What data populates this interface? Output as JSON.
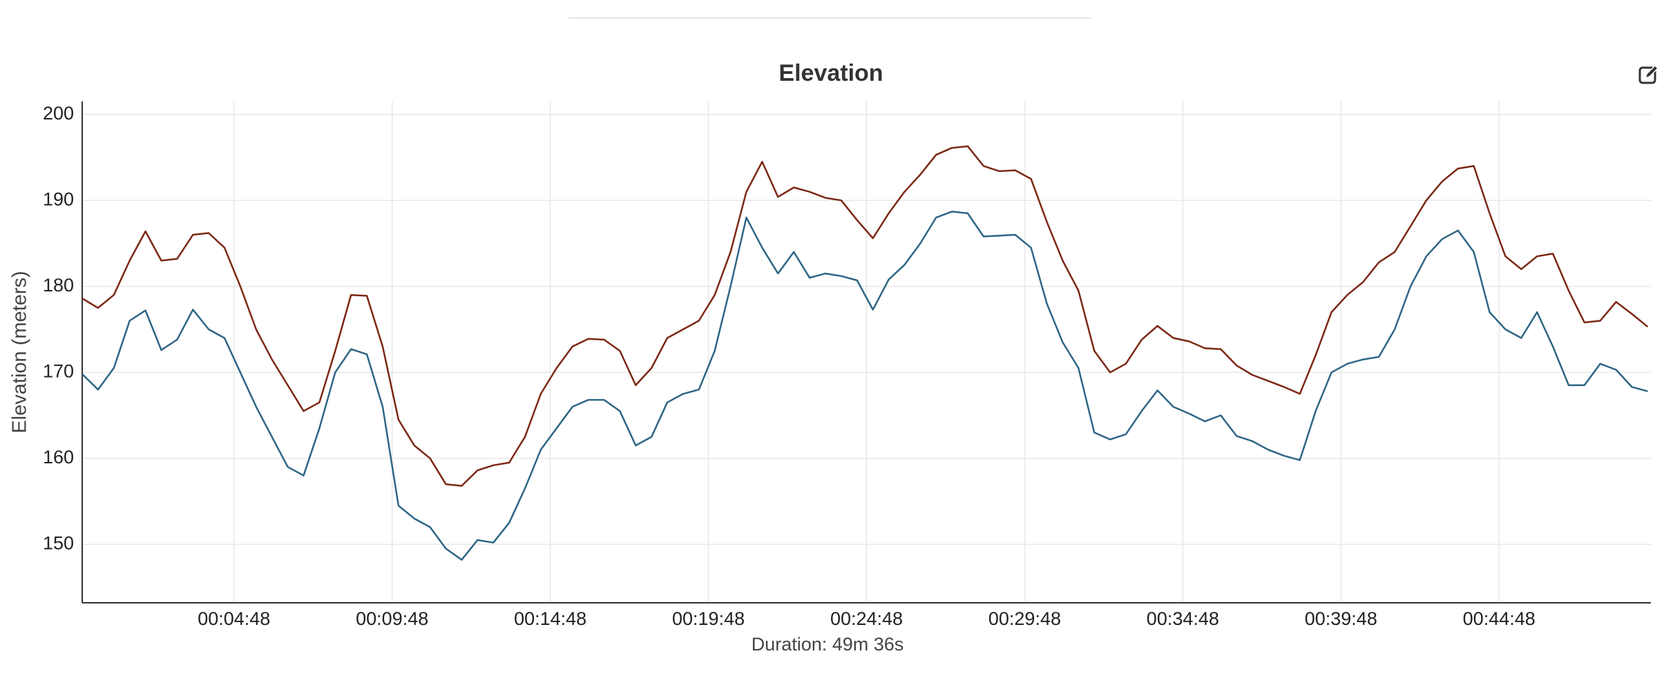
{
  "chart_data": {
    "type": "line",
    "title": "Elevation",
    "x_label": "Duration: 49m 36s",
    "y_label": "Elevation (meters)",
    "x": [
      0,
      30,
      60,
      90,
      120,
      150,
      180,
      210,
      240,
      270,
      300,
      330,
      360,
      390,
      420,
      450,
      480,
      510,
      540,
      570,
      600,
      630,
      660,
      690,
      720,
      750,
      780,
      810,
      840,
      870,
      900,
      930,
      960,
      990,
      1020,
      1050,
      1080,
      1110,
      1140,
      1170,
      1200,
      1230,
      1260,
      1290,
      1320,
      1350,
      1380,
      1410,
      1440,
      1470,
      1500,
      1530,
      1560,
      1590,
      1620,
      1650,
      1680,
      1710,
      1740,
      1770,
      1800,
      1830,
      1860,
      1890,
      1920,
      1950,
      1980,
      2010,
      2040,
      2070,
      2100,
      2130,
      2160,
      2190,
      2220,
      2250,
      2280,
      2310,
      2340,
      2370,
      2400,
      2430,
      2460,
      2490,
      2520,
      2550,
      2580,
      2610,
      2640,
      2670,
      2700,
      2730,
      2760,
      2790,
      2820,
      2850,
      2880,
      2910,
      2940,
      2970
    ],
    "xlim": [
      0,
      2976
    ],
    "xticks": [
      {
        "value": 288,
        "label": "00:04:48"
      },
      {
        "value": 588,
        "label": "00:09:48"
      },
      {
        "value": 888,
        "label": "00:14:48"
      },
      {
        "value": 1188,
        "label": "00:19:48"
      },
      {
        "value": 1488,
        "label": "00:24:48"
      },
      {
        "value": 1788,
        "label": "00:29:48"
      },
      {
        "value": 2088,
        "label": "00:34:48"
      },
      {
        "value": 2388,
        "label": "00:39:48"
      },
      {
        "value": 2688,
        "label": "00:44:48"
      }
    ],
    "ylim": [
      143.2,
      201.5
    ],
    "yticks": [
      150,
      160,
      170,
      180,
      190,
      200
    ],
    "grid": true,
    "series": [
      {
        "color": "#7b2713",
        "values": [
          178.6,
          177.5,
          179,
          183,
          186.4,
          183,
          183.2,
          186,
          186.2,
          184.5,
          180,
          175,
          171.5,
          168.5,
          165.5,
          166.5,
          172.5,
          179,
          178.9,
          173,
          164.5,
          161.5,
          160,
          157,
          156.8,
          158.6,
          159.2,
          159.5,
          162.5,
          167.5,
          170.5,
          173,
          173.9,
          173.8,
          172.5,
          168.5,
          170.5,
          174,
          175,
          176,
          179,
          184,
          191,
          194.5,
          190.4,
          191.5,
          191,
          190.3,
          190,
          187.7,
          185.6,
          188.5,
          191,
          193,
          195.3,
          196.1,
          196.3,
          194,
          193.4,
          193.5,
          192.5,
          187.5,
          183,
          179.5,
          172.5,
          170,
          171,
          173.8,
          175.4,
          174,
          173.6,
          172.8,
          172.7,
          170.8,
          169.7,
          169,
          168.3,
          167.5,
          172,
          177,
          179,
          180.5,
          182.8,
          184,
          187,
          190,
          192.2,
          193.7,
          194,
          188.5,
          183.5,
          182,
          183.5,
          183.8,
          179.5,
          175.8,
          176,
          178.2,
          176.8,
          175.3
        ]
      },
      {
        "color": "#2d6585",
        "values": [
          169.8,
          168,
          170.5,
          176,
          177.2,
          172.6,
          173.8,
          177.3,
          175,
          174,
          170,
          166,
          162.5,
          159,
          158,
          163.5,
          170,
          172.7,
          172.1,
          166,
          154.5,
          153,
          152,
          149.5,
          148.2,
          150.5,
          150.2,
          152.5,
          156.5,
          161,
          163.5,
          166,
          166.8,
          166.8,
          165.5,
          161.5,
          162.5,
          166.5,
          167.5,
          168,
          172.5,
          180,
          188,
          184.5,
          181.5,
          184,
          181,
          181.5,
          181.2,
          180.7,
          177.3,
          180.8,
          182.5,
          185,
          188,
          188.7,
          188.5,
          185.8,
          185.9,
          186,
          184.5,
          178,
          173.5,
          170.5,
          163,
          162.2,
          162.8,
          165.5,
          167.9,
          166,
          165.2,
          164.3,
          165,
          162.6,
          162,
          161,
          160.3,
          159.8,
          165.5,
          170,
          171,
          171.5,
          171.8,
          175,
          180,
          183.5,
          185.5,
          186.5,
          184,
          177,
          175,
          174,
          177,
          173,
          168.5,
          168.5,
          171,
          170.3,
          168.3,
          167.8
        ]
      }
    ]
  }
}
